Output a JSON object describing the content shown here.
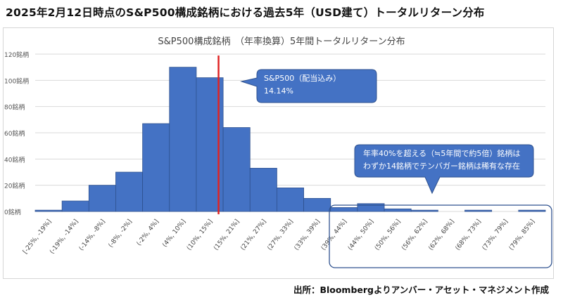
{
  "heading": "2025年2月12日時点のS&P500構成銘柄における過去5年（USD建て）トータルリターン分布",
  "source": "出所：Bloombergよりアンバー・アセット・マネジメント作成",
  "colors": {
    "bar": "#4472C4",
    "bar_edge": "#2F528F",
    "marker": "#E02424",
    "callout": "#4472C4",
    "highlight_box": "#2F528F"
  },
  "callouts": {
    "sp500_label": "S&P500（配当込み）",
    "sp500_value": "14.14%",
    "tenbagger_line1": "年率40%を超える（≒5年間で約5倍）銘柄は",
    "tenbagger_line2": "わずか14銘柄でテンバガー銘柄は稀有な存在"
  },
  "chart_data": {
    "type": "bar",
    "title": "S&P500構成銘柄　（年率換算）5年間トータルリターン分布",
    "categories": [
      "[-25%, -19%]",
      "(-19%, -14%]",
      "(-14%, -8%]",
      "(-8%, -2%]",
      "(-2%, 4%]",
      "(4%, 10%]",
      "(10%, 15%]",
      "(15%, 21%]",
      "(21%, 27%]",
      "(27%, 33%]",
      "(33%, 39%]",
      "(39%, 44%]",
      "(44%, 50%]",
      "(50%, 56%]",
      "(56%, 62%]",
      "(62%, 68%]",
      "(68%, 73%]",
      "(73%, 79%]",
      "(79%, 85%]"
    ],
    "values": [
      1,
      8,
      20,
      30,
      67,
      110,
      102,
      64,
      33,
      18,
      10,
      3,
      6,
      2,
      1,
      0,
      1,
      0,
      1
    ],
    "yticks": [
      "0銘柄",
      "20銘柄",
      "40銘柄",
      "60銘柄",
      "80銘柄",
      "100銘柄",
      "120銘柄"
    ],
    "ylim": [
      0,
      120
    ],
    "grid": true,
    "marker_value": 14.14
  }
}
